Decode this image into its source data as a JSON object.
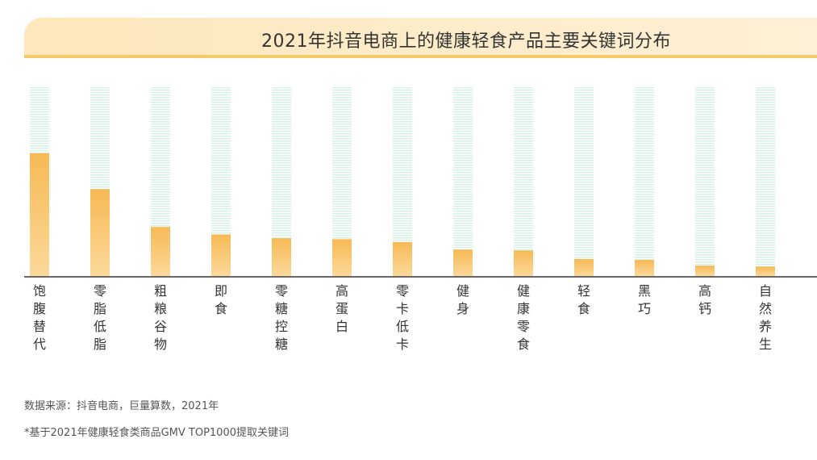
{
  "title": "2021年抖音电商上的健康轻食产品主要关键词分布",
  "chart_data": {
    "type": "bar",
    "title": "2021年抖音电商上的健康轻食产品主要关键词分布",
    "categories": [
      "饱腹替代",
      "零脂低脂",
      "粗粮谷物",
      "即食",
      "零糖控糖",
      "高蛋白",
      "零卡低卡",
      "健身",
      "健康零食",
      "轻食",
      "黑巧",
      "高钙",
      "自然养生"
    ],
    "values": [
      65,
      46,
      26,
      22,
      20,
      19.5,
      18,
      14,
      13.5,
      9,
      8.5,
      5.5,
      5
    ],
    "ylim": [
      0,
      100
    ],
    "xlabel": "",
    "ylabel": "",
    "grid": false,
    "bar_color": "#f6c35e",
    "bar_color_top": "#f9b24a",
    "track_color": "#d8f2e8"
  },
  "footnotes": {
    "source": "数据来源：抖音电商，巨量算数，2021年",
    "note": "*基于2021年健康轻食类商品GMV TOP1000提取关键词"
  }
}
